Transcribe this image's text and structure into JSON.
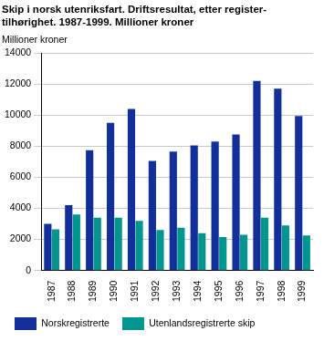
{
  "chart_data": {
    "type": "bar",
    "title": [
      "Skip i norsk utenriksfart. Driftsresultat, etter register-",
      "tilhørighet. 1987-1999. Millioner kroner"
    ],
    "y_label": "Millioner kroner",
    "categories": [
      "1987",
      "1988",
      "1989",
      "1990",
      "1991",
      "1992",
      "1993",
      "1994",
      "1995",
      "1996",
      "1997",
      "1998",
      "1999"
    ],
    "series": [
      {
        "name": "Norskregistrerte",
        "color": "#13309a",
        "values": [
          3000,
          4200,
          7750,
          9500,
          10400,
          7050,
          7650,
          8050,
          8300,
          8750,
          12200,
          11700,
          9950
        ]
      },
      {
        "name": "Utenlandsregistrerte skip",
        "color": "#00968f",
        "values": [
          2650,
          3600,
          3400,
          3400,
          3200,
          2600,
          2750,
          2400,
          2150,
          2300,
          3400,
          2900,
          2250
        ]
      }
    ],
    "ylim": [
      0,
      14000
    ],
    "yticks": [
      0,
      2000,
      4000,
      6000,
      8000,
      10000,
      12000,
      14000
    ],
    "grid": true,
    "legend": "bottom"
  }
}
